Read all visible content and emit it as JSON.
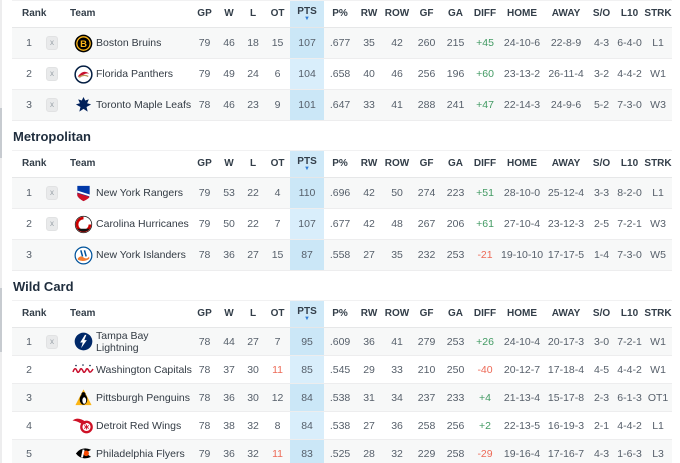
{
  "columns": [
    {
      "key": "rank",
      "label": "Rank",
      "span": 2,
      "align": "left"
    },
    {
      "key": "team",
      "label": "Team",
      "span": 2,
      "align": "left"
    },
    {
      "key": "gp",
      "label": "GP"
    },
    {
      "key": "w",
      "label": "W"
    },
    {
      "key": "l",
      "label": "L"
    },
    {
      "key": "ot",
      "label": "OT"
    },
    {
      "key": "pts",
      "label": "PTS",
      "sorted": true,
      "highlight": true
    },
    {
      "key": "pct",
      "label": "P%"
    },
    {
      "key": "rw",
      "label": "RW"
    },
    {
      "key": "row",
      "label": "ROW"
    },
    {
      "key": "gf",
      "label": "GF"
    },
    {
      "key": "ga",
      "label": "GA"
    },
    {
      "key": "diff",
      "label": "DIFF"
    },
    {
      "key": "home",
      "label": "HOME"
    },
    {
      "key": "away",
      "label": "AWAY"
    },
    {
      "key": "so",
      "label": "S/O"
    },
    {
      "key": "l10",
      "label": "L10"
    },
    {
      "key": "strk",
      "label": "STRK"
    }
  ],
  "stat_keys": [
    "gp",
    "w",
    "l",
    "ot",
    "pts",
    "pct",
    "rw",
    "row",
    "gf",
    "ga",
    "diff",
    "home",
    "away",
    "so",
    "l10",
    "strk"
  ],
  "colors": {
    "pts_header_bg": "#cfe9f8",
    "pts_striped_row_bg": "#cbe7f7",
    "pts_white_row_bg": "#d9eefb",
    "positive_diff": "#429a63",
    "negative_diff": "#ed6a57",
    "sort_caret": "#2e7cd6"
  },
  "sections": [
    {
      "title": "",
      "compact": false,
      "teams": [
        {
          "rank": "1",
          "clinch": "x",
          "abbr": "BOS",
          "name": "Boston Bruins",
          "stats": {
            "gp": "79",
            "w": "46",
            "l": "18",
            "ot": "15",
            "pts": "107",
            "pct": ".677",
            "rw": "35",
            "row": "42",
            "gf": "260",
            "ga": "215",
            "diff": "+45",
            "home": "24-10-6",
            "away": "22-8-9",
            "so": "4-3",
            "l10": "6-4-0",
            "strk": "L1"
          }
        },
        {
          "rank": "2",
          "clinch": "x",
          "abbr": "FLA",
          "name": "Florida Panthers",
          "stats": {
            "gp": "79",
            "w": "49",
            "l": "24",
            "ot": "6",
            "pts": "104",
            "pct": ".658",
            "rw": "40",
            "row": "46",
            "gf": "256",
            "ga": "196",
            "diff": "+60",
            "home": "23-13-2",
            "away": "26-11-4",
            "so": "3-2",
            "l10": "4-4-2",
            "strk": "W1"
          }
        },
        {
          "rank": "3",
          "clinch": "x",
          "abbr": "TOR",
          "name": "Toronto Maple Leafs",
          "stats": {
            "gp": "78",
            "w": "46",
            "l": "23",
            "ot": "9",
            "pts": "101",
            "pct": ".647",
            "rw": "33",
            "row": "41",
            "gf": "288",
            "ga": "241",
            "diff": "+47",
            "home": "22-14-3",
            "away": "24-9-6",
            "so": "5-2",
            "l10": "7-3-0",
            "strk": "W3"
          }
        }
      ]
    },
    {
      "title": "Metropolitan",
      "compact": false,
      "teams": [
        {
          "rank": "1",
          "clinch": "x",
          "abbr": "NYR",
          "name": "New York Rangers",
          "stats": {
            "gp": "79",
            "w": "53",
            "l": "22",
            "ot": "4",
            "pts": "110",
            "pct": ".696",
            "rw": "42",
            "row": "50",
            "gf": "274",
            "ga": "223",
            "diff": "+51",
            "home": "28-10-0",
            "away": "25-12-4",
            "so": "3-3",
            "l10": "8-2-0",
            "strk": "L1"
          }
        },
        {
          "rank": "2",
          "clinch": "x",
          "abbr": "CAR",
          "name": "Carolina Hurricanes",
          "stats": {
            "gp": "79",
            "w": "50",
            "l": "22",
            "ot": "7",
            "pts": "107",
            "pct": ".677",
            "rw": "42",
            "row": "48",
            "gf": "267",
            "ga": "206",
            "diff": "+61",
            "home": "27-10-4",
            "away": "23-12-3",
            "so": "2-5",
            "l10": "7-2-1",
            "strk": "W3"
          }
        },
        {
          "rank": "3",
          "clinch": "",
          "abbr": "NYI",
          "name": "New York Islanders",
          "stats": {
            "gp": "78",
            "w": "36",
            "l": "27",
            "ot": "15",
            "pts": "87",
            "pct": ".558",
            "rw": "27",
            "row": "35",
            "gf": "232",
            "ga": "253",
            "diff": "-21",
            "home": "19-10-10",
            "away": "17-17-5",
            "so": "1-4",
            "l10": "7-3-0",
            "strk": "W5"
          }
        }
      ]
    },
    {
      "title": "Wild Card",
      "compact": true,
      "teams": [
        {
          "rank": "1",
          "clinch": "x",
          "abbr": "TBL",
          "name": "Tampa Bay Lightning",
          "stats": {
            "gp": "78",
            "w": "44",
            "l": "27",
            "ot": "7",
            "pts": "95",
            "pct": ".609",
            "rw": "36",
            "row": "41",
            "gf": "279",
            "ga": "253",
            "diff": "+26",
            "home": "24-10-4",
            "away": "20-17-3",
            "so": "3-0",
            "l10": "7-2-1",
            "strk": "W1"
          }
        },
        {
          "rank": "2",
          "clinch": "",
          "abbr": "WSH",
          "name": "Washington Capitals",
          "ot_alert": true,
          "stats": {
            "gp": "78",
            "w": "37",
            "l": "30",
            "ot": "11",
            "pts": "85",
            "pct": ".545",
            "rw": "29",
            "row": "33",
            "gf": "210",
            "ga": "250",
            "diff": "-40",
            "home": "20-12-7",
            "away": "17-18-4",
            "so": "4-5",
            "l10": "4-4-2",
            "strk": "W1"
          }
        },
        {
          "rank": "3",
          "clinch": "",
          "abbr": "PIT",
          "name": "Pittsburgh Penguins",
          "stats": {
            "gp": "78",
            "w": "36",
            "l": "30",
            "ot": "12",
            "pts": "84",
            "pct": ".538",
            "rw": "31",
            "row": "34",
            "gf": "237",
            "ga": "233",
            "diff": "+4",
            "home": "21-13-4",
            "away": "15-17-8",
            "so": "2-3",
            "l10": "6-1-3",
            "strk": "OT1"
          }
        },
        {
          "rank": "4",
          "clinch": "",
          "abbr": "DET",
          "name": "Detroit Red Wings",
          "stats": {
            "gp": "78",
            "w": "38",
            "l": "32",
            "ot": "8",
            "pts": "84",
            "pct": ".538",
            "rw": "27",
            "row": "36",
            "gf": "258",
            "ga": "256",
            "diff": "+2",
            "home": "22-13-5",
            "away": "16-19-3",
            "so": "2-1",
            "l10": "4-4-2",
            "strk": "L1"
          }
        },
        {
          "rank": "5",
          "clinch": "",
          "abbr": "PHI",
          "name": "Philadelphia Flyers",
          "ot_alert": true,
          "stats": {
            "gp": "79",
            "w": "36",
            "l": "32",
            "ot": "11",
            "pts": "83",
            "pct": ".525",
            "rw": "28",
            "row": "32",
            "gf": "229",
            "ga": "258",
            "diff": "-29",
            "home": "19-16-4",
            "away": "17-16-7",
            "so": "4-3",
            "l10": "1-6-3",
            "strk": "L3"
          }
        }
      ]
    }
  ]
}
